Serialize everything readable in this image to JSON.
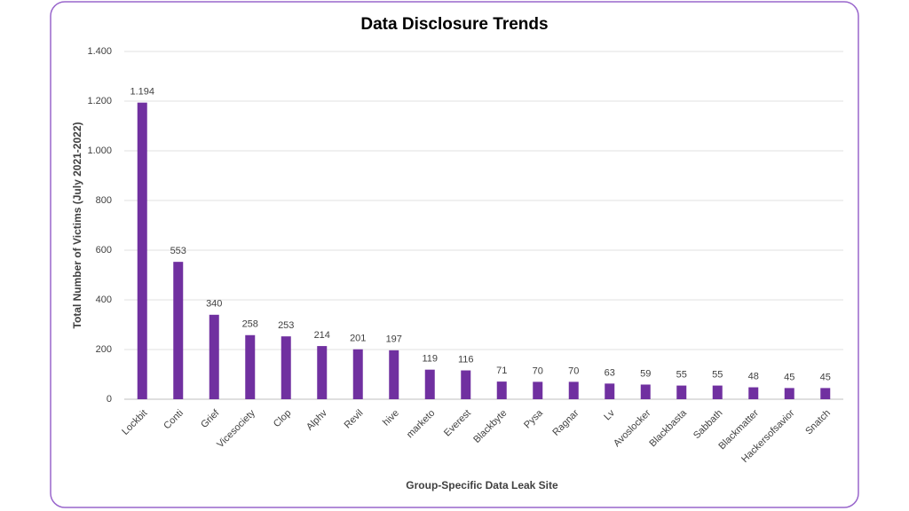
{
  "chart_data": {
    "type": "bar",
    "title": "Data Disclosure Trends",
    "x_label": "Group-Specific Data Leak Site",
    "y_label": "Total  Number of Victims (July 2021-2022)",
    "categories": [
      "Lockbit",
      "Conti",
      "Grief",
      "Vicesociety",
      "Clop",
      "Alphv",
      "Revil",
      "hive",
      "marketo",
      "Everest",
      "Blackbyte",
      "Pysa",
      "Ragnar",
      "Lv",
      "Avoslocker",
      "Blackbasta",
      "Sabbath",
      "Blackmatter",
      "Hackersofsavior",
      "Snatch"
    ],
    "values": [
      1194,
      553,
      340,
      258,
      253,
      214,
      201,
      197,
      119,
      116,
      71,
      70,
      70,
      63,
      59,
      55,
      55,
      48,
      45,
      45
    ],
    "value_labels": [
      "1.194",
      "553",
      "340",
      "258",
      "253",
      "214",
      "201",
      "197",
      "119",
      "116",
      "71",
      "70",
      "70",
      "63",
      "59",
      "55",
      "55",
      "48",
      "45",
      "45"
    ],
    "color": "#7030a0",
    "ylim": [
      0,
      1400
    ],
    "yticks": [
      0,
      200,
      400,
      600,
      800,
      {
        "value": 1000,
        "label": "1.000"
      },
      {
        "value": 1200,
        "label": "1.200"
      },
      {
        "value": 1400,
        "label": "1.400"
      }
    ],
    "grid": true
  }
}
